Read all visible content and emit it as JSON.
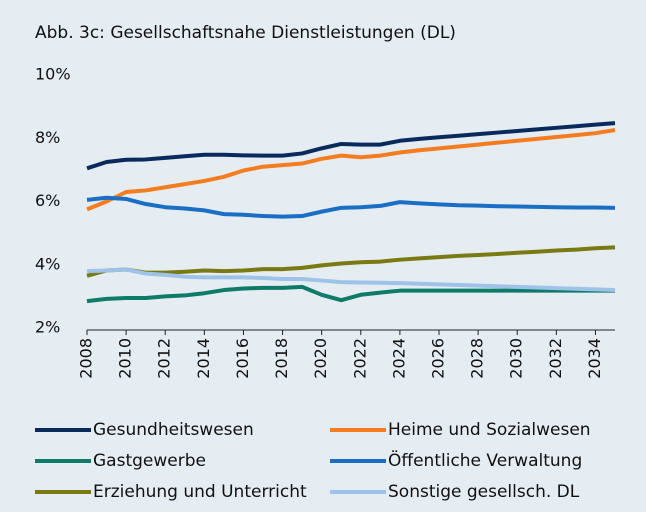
{
  "chart_data": {
    "type": "line",
    "title": "Abb. 3c: Gesellschaftsnahe Dienstleistungen (DL)",
    "x": [
      2008,
      2009,
      2010,
      2011,
      2012,
      2013,
      2014,
      2015,
      2016,
      2017,
      2018,
      2019,
      2020,
      2021,
      2022,
      2023,
      2024,
      2025,
      2026,
      2027,
      2028,
      2029,
      2030,
      2031,
      2032,
      2033,
      2034,
      2035
    ],
    "xlim": [
      2008,
      2035
    ],
    "xticks": [
      2008,
      2010,
      2012,
      2014,
      2016,
      2018,
      2020,
      2022,
      2024,
      2026,
      2028,
      2030,
      2032,
      2034
    ],
    "ylim": [
      2,
      10
    ],
    "yticks": [
      {
        "value": 2,
        "label": "2%"
      },
      {
        "value": 4,
        "label": "4%"
      },
      {
        "value": 6,
        "label": "6%"
      },
      {
        "value": 8,
        "label": "8%"
      },
      {
        "value": 10,
        "label": "10%"
      }
    ],
    "series": [
      {
        "name": "Gesundheitswesen",
        "color": "#0b2a5c",
        "values": [
          7.05,
          7.25,
          7.32,
          7.33,
          7.38,
          7.43,
          7.48,
          7.48,
          7.46,
          7.45,
          7.45,
          7.52,
          7.68,
          7.82,
          7.8,
          7.8,
          7.92,
          7.98,
          8.03,
          8.08,
          8.13,
          8.18,
          8.23,
          8.28,
          8.33,
          8.38,
          8.43,
          8.48
        ]
      },
      {
        "name": "Heime und Sozialwesen",
        "color": "#f57c1f",
        "values": [
          5.75,
          6.0,
          6.3,
          6.35,
          6.45,
          6.55,
          6.65,
          6.78,
          6.98,
          7.1,
          7.15,
          7.2,
          7.35,
          7.45,
          7.4,
          7.45,
          7.55,
          7.62,
          7.68,
          7.74,
          7.8,
          7.86,
          7.92,
          7.98,
          8.04,
          8.1,
          8.16,
          8.26
        ]
      },
      {
        "name": "Gastgewerbe",
        "color": "#0e7a68",
        "values": [
          2.85,
          2.92,
          2.95,
          2.95,
          3.0,
          3.03,
          3.1,
          3.2,
          3.25,
          3.27,
          3.27,
          3.3,
          3.05,
          2.88,
          3.05,
          3.12,
          3.18,
          3.18,
          3.18,
          3.18,
          3.18,
          3.18,
          3.18,
          3.18,
          3.18,
          3.18,
          3.18,
          3.18
        ]
      },
      {
        "name": "Öffentliche Verwaltung",
        "color": "#1a6fc4",
        "values": [
          6.05,
          6.12,
          6.08,
          5.92,
          5.82,
          5.78,
          5.72,
          5.6,
          5.58,
          5.54,
          5.52,
          5.54,
          5.68,
          5.8,
          5.82,
          5.86,
          5.98,
          5.94,
          5.91,
          5.88,
          5.87,
          5.85,
          5.84,
          5.83,
          5.82,
          5.81,
          5.81,
          5.8
        ]
      },
      {
        "name": "Erziehung und Unterricht",
        "color": "#7a7a12",
        "values": [
          3.65,
          3.82,
          3.85,
          3.75,
          3.75,
          3.78,
          3.82,
          3.8,
          3.82,
          3.86,
          3.86,
          3.9,
          3.98,
          4.04,
          4.08,
          4.1,
          4.16,
          4.2,
          4.24,
          4.28,
          4.31,
          4.34,
          4.38,
          4.41,
          4.45,
          4.48,
          4.52,
          4.55
        ]
      },
      {
        "name": "Sonstige gesellsch. DL",
        "color": "#9fc3e8",
        "values": [
          3.8,
          3.82,
          3.85,
          3.72,
          3.68,
          3.62,
          3.6,
          3.6,
          3.6,
          3.58,
          3.55,
          3.55,
          3.5,
          3.45,
          3.44,
          3.43,
          3.42,
          3.4,
          3.38,
          3.36,
          3.34,
          3.32,
          3.3,
          3.28,
          3.26,
          3.24,
          3.22,
          3.2
        ]
      }
    ]
  }
}
